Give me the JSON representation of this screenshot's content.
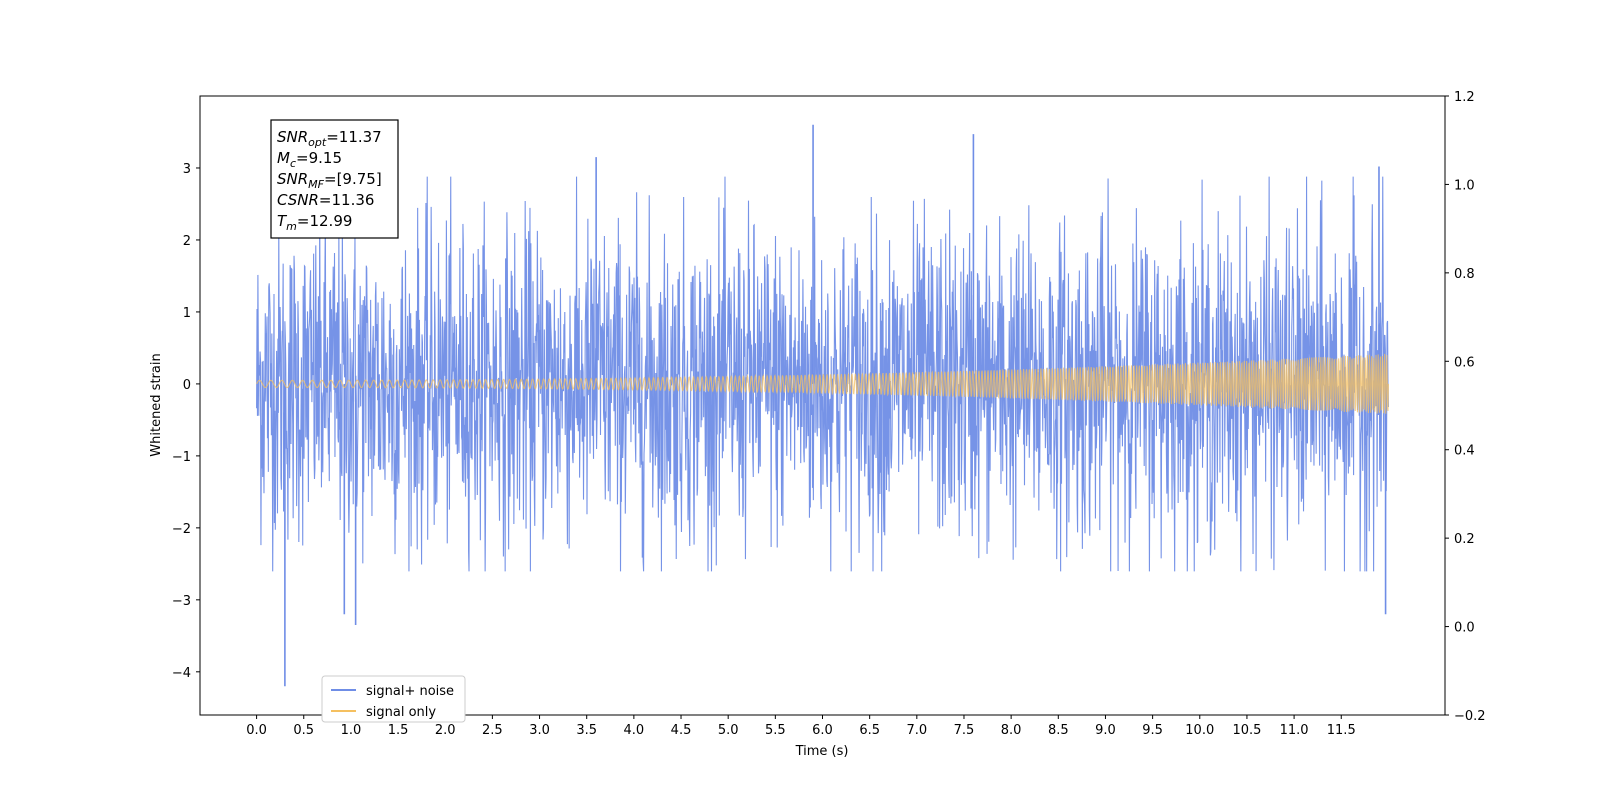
{
  "chart_data": {
    "type": "line",
    "title": "",
    "xlabel": "Time (s)",
    "ylabel": "Whitened strain",
    "xlim": [
      -0.6,
      12.6
    ],
    "ylim": [
      -4.6,
      4.0
    ],
    "y2lim": [
      -0.2,
      1.2
    ],
    "grid": false,
    "x_ticks": [
      0.0,
      0.5,
      1.0,
      1.5,
      2.0,
      2.5,
      3.0,
      3.5,
      4.0,
      4.5,
      5.0,
      5.5,
      6.0,
      6.5,
      7.0,
      7.5,
      8.0,
      8.5,
      9.0,
      9.5,
      10.0,
      10.5,
      11.0,
      11.5
    ],
    "x_tick_labels": [
      "0.0",
      "0.5",
      "1.0",
      "1.5",
      "2.0",
      "2.5",
      "3.0",
      "3.5",
      "4.0",
      "4.5",
      "5.0",
      "5.5",
      "6.0",
      "6.5",
      "7.0",
      "7.5",
      "8.0",
      "8.5",
      "9.0",
      "9.5",
      "10.0",
      "10.5",
      "11.0",
      "11.5"
    ],
    "y_ticks": [
      -4,
      -3,
      -2,
      -1,
      0,
      1,
      2,
      3
    ],
    "y_tick_labels": [
      "−4",
      "−3",
      "−2",
      "−1",
      "0",
      "1",
      "2",
      "3"
    ],
    "y2_ticks": [
      -0.2,
      0.0,
      0.2,
      0.4,
      0.6,
      0.8,
      1.0,
      1.2
    ],
    "y2_tick_labels": [
      "−0.2",
      "0.0",
      "0.2",
      "0.4",
      "0.6",
      "0.8",
      "1.0",
      "1.2"
    ],
    "series": [
      {
        "name": "signal+ noise",
        "color": "#6f8de6",
        "kind": "noise",
        "x_range": [
          0.0,
          12.0
        ],
        "typical_amplitude": 1.6,
        "max": 3.6,
        "min": -4.2,
        "peaks": [
          {
            "x": 0.3,
            "y": -4.2
          },
          {
            "x": 1.05,
            "y": -3.35
          },
          {
            "x": 0.93,
            "y": -3.2
          },
          {
            "x": 5.9,
            "y": 3.6
          },
          {
            "x": 7.6,
            "y": 3.47
          },
          {
            "x": 3.6,
            "y": 3.15
          },
          {
            "x": 11.9,
            "y": 3.02
          },
          {
            "x": 11.97,
            "y": -3.2
          }
        ]
      },
      {
        "name": "signal only",
        "color": "#f5c060",
        "kind": "chirp",
        "x_range": [
          0.0,
          12.0
        ],
        "amplitude_start": 0.05,
        "amplitude_end": 0.42
      }
    ],
    "annotation_lines": [
      {
        "base": "SNR",
        "sub": "opt",
        "value": "=11.37"
      },
      {
        "base": "M",
        "sub": "c",
        "value": "=9.15"
      },
      {
        "base": "SNR",
        "sub": "MF",
        "value": "=[9.75]"
      },
      {
        "base": "CSNR",
        "sub": "",
        "value": "=11.36"
      },
      {
        "base": "T",
        "sub": "m",
        "value": "=12.99"
      }
    ],
    "legend": {
      "placement": "lower-left",
      "entries": [
        {
          "label": "signal+ noise",
          "color": "#6f8de6"
        },
        {
          "label": "signal only",
          "color": "#f5c060"
        }
      ]
    }
  }
}
